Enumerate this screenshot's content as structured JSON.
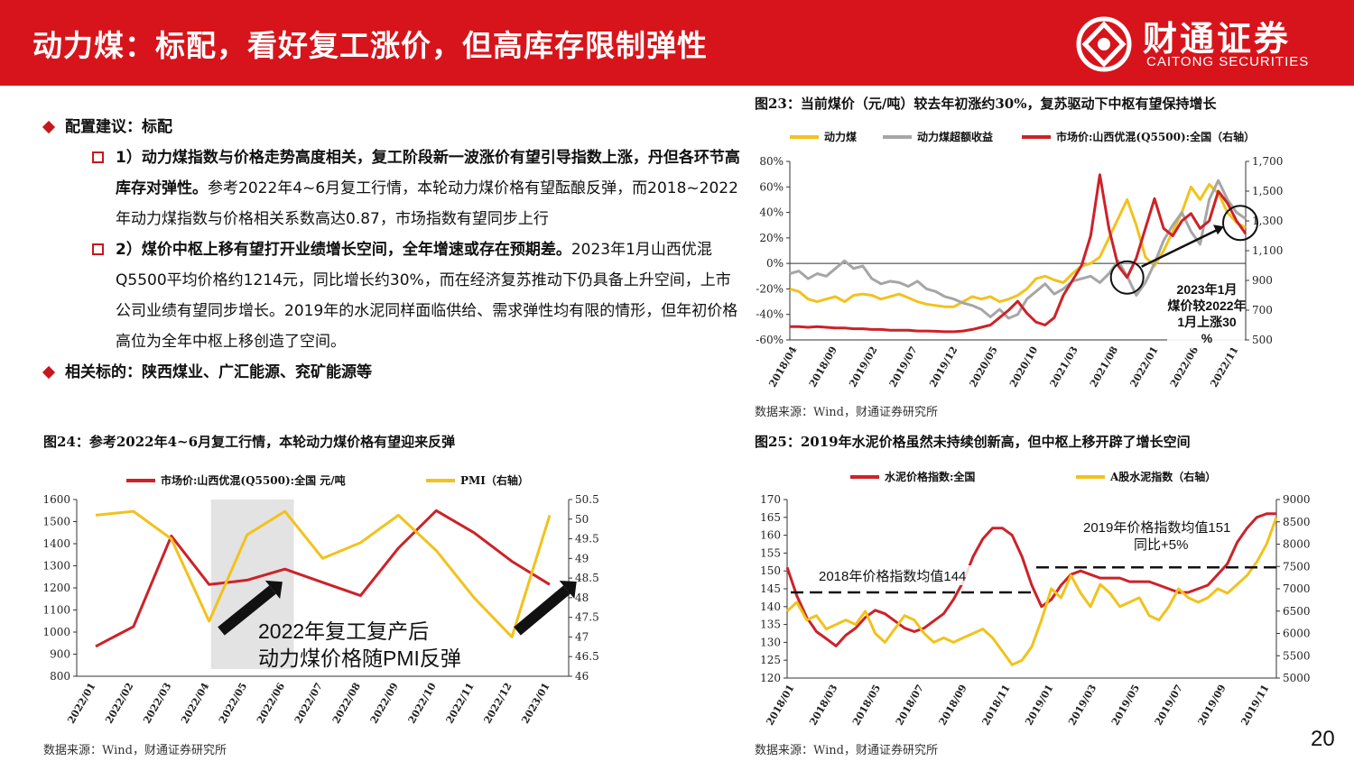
{
  "header": {
    "title": "动力煤：标配，看好复工涨价，但高库存限制弹性",
    "brand_cn": "财通证券",
    "brand_en": "CAITONG SECURITIES"
  },
  "bullets": {
    "b1": "配置建议：标配",
    "p1_bold": "1）动力煤指数与价格走势高度相关，复工阶段新一波涨价有望引导指数上涨，丹但各环节高库存对弹性。",
    "p1_rest": "参考2022年4~6月复工行情，本轮动力煤价格有望酝酿反弹，而2018~2022年动力煤指数与价格相关系数高达0.87，市场指数有望同步上行",
    "p2_bold": "2）煤价中枢上移有望打开业绩增长空间，全年增速或存在预期差。",
    "p2_rest": "2023年1月山西优混Q5500平均价格约1214元，同比增长约30%，而在经济复苏推动下仍具备上升空间，上市公司业绩有望同步增长。2019年的水泥同样面临供给、需求弹性均有限的情形，但年初价格高位为全年中枢上移创造了空间。",
    "b3": "相关标的：陕西煤业、广汇能源、兖矿能源等"
  },
  "colors": {
    "red": "#cc2229",
    "yellow": "#f2c21c",
    "gray": "#a6a6a6",
    "header": "#d7141b"
  },
  "figures": {
    "fig23_title": "图23：当前煤价（元/吨）较去年初涨约30%，复苏驱动下中枢有望保持增长",
    "fig24_title": "图24：参考2022年4~6月复工行情，本轮动力煤价格有望迎来反弹",
    "fig25_title": "图25：2019年水泥价格虽然未持续创新高，但中枢上移开辟了增长空间",
    "source_text": "数据来源：Wind，财通证券研究所"
  },
  "chart_data": [
    {
      "type": "line",
      "title": "图23：当前煤价（元/吨）较去年初涨约30%，复苏驱动下中枢有望保持增长",
      "x_ticks": [
        "2018/04",
        "2018/09",
        "2019/02",
        "2019/07",
        "2019/12",
        "2020/05",
        "2020/10",
        "2021/03",
        "2021/08",
        "2022/01",
        "2022/06",
        "2022/11"
      ],
      "y_left_ticks": [
        "80%",
        "60%",
        "40%",
        "20%",
        "0%",
        "-20%",
        "-40%",
        "-60%"
      ],
      "y_left_lim": [
        -60,
        80
      ],
      "y_right_ticks": [
        "1,700",
        "1,500",
        "1,300",
        "1,100",
        "900",
        "700",
        "500"
      ],
      "y_right_lim": [
        500,
        1700
      ],
      "series": [
        {
          "name": "动力煤",
          "axis": "left",
          "color": "#f2c21c",
          "values": [
            -20,
            -22,
            -28,
            -30,
            -28,
            -26,
            -30,
            -25,
            -24,
            -25,
            -28,
            -26,
            -24,
            -27,
            -30,
            -32,
            -33,
            -34,
            -34,
            -30,
            -26,
            -28,
            -26,
            -30,
            -28,
            -25,
            -20,
            -12,
            -10,
            -13,
            -15,
            -8,
            -2,
            0,
            5,
            20,
            35,
            50,
            30,
            5,
            -2,
            10,
            25,
            40,
            60,
            50,
            62,
            55,
            40,
            32,
            28
          ]
        },
        {
          "name": "动力煤超额收益",
          "axis": "left",
          "color": "#a6a6a6",
          "values": [
            -8,
            -6,
            -12,
            -8,
            -10,
            -4,
            2,
            -4,
            -2,
            -12,
            -16,
            -14,
            -15,
            -18,
            -14,
            -20,
            -22,
            -26,
            -28,
            -31,
            -33,
            -36,
            -42,
            -36,
            -43,
            -40,
            -28,
            -22,
            -16,
            -24,
            -20,
            -14,
            -12,
            -10,
            -15,
            -8,
            2,
            -10,
            -25,
            -15,
            0,
            18,
            30,
            40,
            25,
            15,
            50,
            65,
            50,
            40,
            35
          ]
        },
        {
          "name": "市场价:山西优混(Q5500):全国（右轴）",
          "axis": "right",
          "color": "#cc2229",
          "values": [
            590,
            590,
            585,
            590,
            585,
            580,
            580,
            575,
            575,
            570,
            570,
            565,
            565,
            565,
            560,
            560,
            558,
            555,
            555,
            560,
            570,
            585,
            600,
            650,
            700,
            760,
            680,
            620,
            600,
            650,
            800,
            900,
            1000,
            1200,
            1610,
            1250,
            1000,
            920,
            1050,
            1250,
            1450,
            1250,
            1200,
            1300,
            1350,
            1250,
            1300,
            1500,
            1420,
            1300,
            1214
          ]
        }
      ],
      "annotation": "2023年1月煤价较2022年1月上涨30%"
    },
    {
      "type": "line",
      "title": "图24：参考2022年4~6月复工行情，本轮动力煤价格有望迎来反弹",
      "categories": [
        "2022/01",
        "2022/02",
        "2022/03",
        "2022/04",
        "2022/05",
        "2022/06",
        "2022/07",
        "2022/08",
        "2022/09",
        "2022/10",
        "2022/11",
        "2022/12",
        "2023/01"
      ],
      "y_left_ticks": [
        "1600",
        "1500",
        "1400",
        "1300",
        "1200",
        "1100",
        "1000",
        "900",
        "800"
      ],
      "y_left_lim": [
        800,
        1600
      ],
      "y_right_ticks": [
        "50.5",
        "50",
        "49.5",
        "49",
        "48.5",
        "48",
        "47.5",
        "47",
        "46.5",
        "46"
      ],
      "y_right_lim": [
        46,
        50.5
      ],
      "series": [
        {
          "name": "市场价:山西优混(Q5500):全国 元/吨",
          "axis": "left",
          "color": "#cc2229",
          "values": [
            935,
            1025,
            1435,
            1215,
            1235,
            1285,
            1225,
            1165,
            1380,
            1550,
            1450,
            1320,
            1215
          ]
        },
        {
          "name": "PMI（右轴）",
          "axis": "right",
          "color": "#f2c21c",
          "values": [
            50.1,
            50.2,
            49.5,
            47.4,
            49.6,
            50.2,
            49.0,
            49.4,
            50.1,
            49.2,
            48.0,
            47.0,
            50.1
          ]
        }
      ],
      "shaded_range": [
        "2022/04",
        "2022/06"
      ],
      "annotation": "2022年复工复产后动力煤价格随PMI反弹"
    },
    {
      "type": "line",
      "title": "图25：2019年水泥价格虽然未持续创新高，但中枢上移开辟了增长空间",
      "x_ticks": [
        "2018/01",
        "2018/03",
        "2018/05",
        "2018/07",
        "2018/09",
        "2018/11",
        "2019/01",
        "2019/03",
        "2019/05",
        "2019/07",
        "2019/09",
        "2019/11"
      ],
      "y_left_ticks": [
        "170",
        "165",
        "160",
        "155",
        "150",
        "145",
        "140",
        "135",
        "130",
        "125",
        "120"
      ],
      "y_left_lim": [
        120,
        170
      ],
      "y_right_ticks": [
        "9000",
        "8500",
        "8000",
        "7500",
        "7000",
        "6500",
        "6000",
        "5500",
        "5000"
      ],
      "y_right_lim": [
        5000,
        9000
      ],
      "series": [
        {
          "name": "水泥价格指数:全国",
          "axis": "left",
          "color": "#cc2229",
          "values": [
            151,
            143,
            137,
            133,
            131,
            129,
            132,
            134,
            137,
            139,
            138,
            136,
            134,
            133,
            134,
            136,
            138,
            142,
            147,
            154,
            159,
            162,
            162,
            160,
            154,
            146,
            140,
            142,
            146,
            149,
            150,
            149,
            148,
            148,
            148,
            147,
            147,
            147,
            146,
            145,
            144,
            144,
            145,
            146,
            149,
            152,
            158,
            162,
            165,
            166,
            166
          ]
        },
        {
          "name": "A股水泥指数（右轴）",
          "axis": "right",
          "color": "#f2c21c",
          "values": [
            6500,
            6700,
            6300,
            6400,
            6100,
            6200,
            6300,
            6200,
            6500,
            6000,
            5800,
            6100,
            6400,
            6300,
            6000,
            5800,
            5900,
            5800,
            5900,
            6000,
            6100,
            5900,
            5600,
            5300,
            5400,
            5700,
            6300,
            7000,
            6800,
            7300,
            6900,
            6600,
            7100,
            6900,
            6600,
            6700,
            6800,
            6400,
            6300,
            6600,
            7000,
            6800,
            6700,
            6800,
            7000,
            6900,
            7100,
            7300,
            7600,
            8000,
            8600
          ]
        }
      ],
      "reference_lines": [
        {
          "label": "2018年价格指数均值144",
          "value": 144
        },
        {
          "label": "2019年价格指数均值151 同比+5%",
          "value": 151
        }
      ]
    }
  ],
  "page": {
    "number": "20"
  }
}
